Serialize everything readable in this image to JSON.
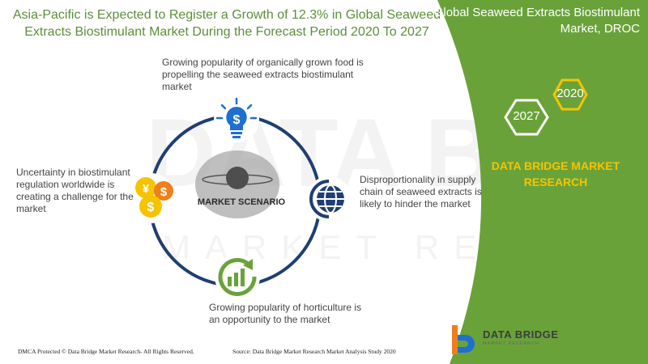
{
  "header": {
    "title": "Asia-Pacific is Expected to Register a Growth of 12.3% in Global Seaweed Extracts Biostimulant Market During the Forecast Period 2020 To 2027",
    "side_title": "Global Seaweed Extracts Biostimulant Market, DROC"
  },
  "years": {
    "start": "2020",
    "end": "2027"
  },
  "brand": {
    "name": "DATA BRIDGE MARKET RESEARCH",
    "logo_text": "DATA BRIDGE",
    "logo_sub": "MARKET RESEARCH"
  },
  "diagram": {
    "center_label": "MARKET SCENARIO",
    "drivers": [
      {
        "type": "driver",
        "text": "Growing popularity of organically grown food is propelling the seaweed extracts biostimulant market",
        "icon": "lightbulb-dollar-icon"
      },
      {
        "type": "restraint",
        "text": "Disproportionality in supply chain of seaweed extracts is likely to hinder the market",
        "icon": "globe-icon"
      },
      {
        "type": "opportunity",
        "text": "Growing popularity of horticulture is an opportunity to the market",
        "icon": "growth-chart-icon"
      },
      {
        "type": "challenge",
        "text": "Uncertainty in biostimulant regulation worldwide is creating a challenge for the market",
        "icon": "coins-icon"
      }
    ]
  },
  "footer": {
    "dmca": "DMCA Protected © Data Bridge Market Research- All Rights Reserved.",
    "source": "Source: Data Bridge Market Research Market Analysis Study 2020"
  },
  "colors": {
    "green": "#6aa23a",
    "navy": "#1f3f73",
    "blue": "#1e6fd0",
    "gold": "#f5c400",
    "orange": "#f07f1a"
  }
}
